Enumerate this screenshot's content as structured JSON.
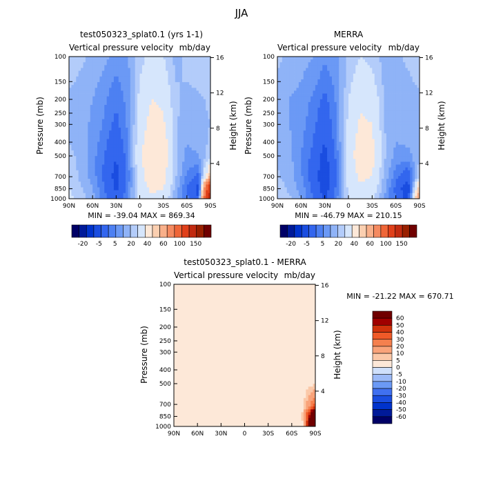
{
  "figure_title": "JJA",
  "colors": {
    "ramp_abs": [
      "#000066",
      "#001a99",
      "#0033cc",
      "#1a4de0",
      "#3366ee",
      "#4d80f2",
      "#6b99f5",
      "#8fb3f7",
      "#b3ccfa",
      "#d6e6fc",
      "#fde8d8",
      "#fbcfb0",
      "#f9b08a",
      "#f58a60",
      "#ef6638",
      "#e0401a",
      "#c22b10",
      "#992000",
      "#700000"
    ],
    "ramp_diff": [
      "#000066",
      "#001a99",
      "#0033cc",
      "#1a4de0",
      "#4070f0",
      "#6b99f5",
      "#9cbaf7",
      "#cfe0fb",
      "#fde8d8",
      "#fbc8a8",
      "#f9a37a",
      "#f5804e",
      "#ef5a28",
      "#d0320c",
      "#a00000",
      "#700000"
    ]
  },
  "chart_data": [
    {
      "id": "model",
      "type": "heatmap",
      "title": "test050323_splat0.1 (yrs 1-1)",
      "subtitle_left": "Vertical pressure velocity",
      "subtitle_right": "mb/day",
      "ylabel": "Pressure (mb)",
      "ylabel_right": "Height (km)",
      "y_scale": "log",
      "ylim": [
        1000,
        100
      ],
      "x_ticks": [
        "90N",
        "60N",
        "30N",
        "0",
        "30S",
        "60S",
        "90S"
      ],
      "y_ticks": [
        100,
        150,
        200,
        250,
        300,
        400,
        500,
        700,
        850,
        1000
      ],
      "height_ticks": [
        16,
        12,
        8,
        4
      ],
      "stats": "MIN = -39.04   MAX = 869.34",
      "colorbar_labels": [
        "-20",
        "-5",
        "5",
        "20",
        "40",
        "60",
        "100",
        "150"
      ],
      "x_lat": [
        -90,
        -75,
        -60,
        -45,
        -30,
        -15,
        0,
        15,
        30,
        45,
        60,
        75,
        90
      ],
      "p_levels": [
        100,
        150,
        200,
        300,
        400,
        500,
        700,
        850,
        1000
      ],
      "values": [
        [
          8,
          6,
          4,
          2,
          -3,
          0,
          8,
          12,
          10,
          4,
          6,
          8,
          10
        ],
        [
          6,
          4,
          2,
          -2,
          -6,
          -2,
          10,
          16,
          14,
          5,
          5,
          6,
          8
        ],
        [
          4,
          2,
          0,
          -4,
          -9,
          -3,
          12,
          20,
          18,
          6,
          4,
          4,
          6
        ],
        [
          4,
          2,
          -1,
          -6,
          -12,
          -4,
          14,
          24,
          22,
          6,
          2,
          3,
          5
        ],
        [
          5,
          3,
          -2,
          -8,
          -16,
          -5,
          16,
          28,
          26,
          7,
          0,
          2,
          6
        ],
        [
          6,
          4,
          -3,
          -10,
          -20,
          -6,
          18,
          30,
          28,
          8,
          -2,
          0,
          8
        ],
        [
          8,
          4,
          -2,
          -12,
          -24,
          -8,
          16,
          26,
          24,
          6,
          -6,
          -12,
          40
        ],
        [
          10,
          6,
          0,
          -10,
          -22,
          -6,
          14,
          22,
          20,
          4,
          -10,
          -24,
          150
        ],
        [
          12,
          8,
          2,
          -8,
          -18,
          -4,
          12,
          18,
          16,
          2,
          -8,
          -20,
          200
        ]
      ]
    },
    {
      "id": "merra",
      "type": "heatmap",
      "title": "MERRA",
      "subtitle_left": "Vertical pressure velocity",
      "subtitle_right": "mb/day",
      "ylabel": "Pressure (mb)",
      "ylabel_right": "Height (km)",
      "y_scale": "log",
      "ylim": [
        1000,
        100
      ],
      "x_ticks": [
        "90N",
        "60N",
        "30N",
        "0",
        "30S",
        "60S",
        "90S"
      ],
      "y_ticks": [
        100,
        150,
        200,
        250,
        300,
        400,
        500,
        700,
        850,
        1000
      ],
      "height_ticks": [
        16,
        12,
        8,
        4
      ],
      "stats": "MIN = -46.79   MAX = 210.15",
      "colorbar_labels": [
        "-20",
        "-5",
        "5",
        "20",
        "40",
        "60",
        "100",
        "150"
      ],
      "x_lat": [
        -90,
        -75,
        -60,
        -45,
        -30,
        -15,
        0,
        15,
        30,
        45,
        60,
        75,
        90
      ],
      "p_levels": [
        100,
        150,
        200,
        300,
        400,
        500,
        700,
        850,
        1000
      ],
      "values": [
        [
          6,
          4,
          2,
          0,
          -4,
          -1,
          6,
          10,
          8,
          3,
          4,
          6,
          8
        ],
        [
          4,
          2,
          0,
          -3,
          -8,
          -3,
          8,
          14,
          12,
          4,
          3,
          4,
          6
        ],
        [
          2,
          0,
          -2,
          -6,
          -12,
          -4,
          10,
          18,
          16,
          5,
          2,
          3,
          4
        ],
        [
          2,
          0,
          -3,
          -8,
          -16,
          -5,
          12,
          22,
          20,
          5,
          1,
          2,
          4
        ],
        [
          3,
          1,
          -4,
          -10,
          -20,
          -6,
          14,
          24,
          22,
          6,
          0,
          1,
          4
        ],
        [
          4,
          2,
          -5,
          -12,
          -24,
          -8,
          15,
          26,
          24,
          6,
          -2,
          -2,
          4
        ],
        [
          6,
          2,
          -4,
          -14,
          -28,
          -10,
          14,
          22,
          20,
          4,
          -8,
          -16,
          10
        ],
        [
          8,
          4,
          -2,
          -12,
          -26,
          -8,
          12,
          18,
          16,
          2,
          -12,
          -30,
          40
        ],
        [
          10,
          6,
          0,
          -10,
          -22,
          -6,
          10,
          14,
          12,
          0,
          -10,
          -24,
          60
        ]
      ]
    },
    {
      "id": "difference",
      "type": "heatmap",
      "title": "test050323_splat0.1 - MERRA",
      "subtitle_left": "Vertical pressure velocity",
      "subtitle_right": "mb/day",
      "ylabel": "Pressure (mb)",
      "ylabel_right": "Height (km)",
      "y_scale": "log",
      "ylim": [
        1000,
        100
      ],
      "x_ticks": [
        "90N",
        "60N",
        "30N",
        "0",
        "30S",
        "60S",
        "90S"
      ],
      "y_ticks": [
        100,
        150,
        200,
        250,
        300,
        400,
        500,
        700,
        850,
        1000
      ],
      "height_ticks": [
        16,
        12,
        8,
        4
      ],
      "stats": "MIN = -21.22   MAX = 670.71",
      "colorbar_labels": [
        "60",
        "50",
        "40",
        "30",
        "20",
        "10",
        "5",
        "0",
        "-5",
        "-10",
        "-20",
        "-30",
        "-40",
        "-50",
        "-60"
      ],
      "x_lat": [
        -90,
        -75,
        -60,
        -45,
        -30,
        -15,
        0,
        15,
        30,
        45,
        60,
        75,
        90
      ],
      "p_levels": [
        100,
        150,
        200,
        300,
        400,
        500,
        700,
        850,
        1000
      ],
      "values": [
        [
          2,
          2,
          2,
          2,
          1,
          1,
          2,
          2,
          2,
          1,
          2,
          2,
          2
        ],
        [
          2,
          2,
          2,
          1,
          2,
          1,
          2,
          2,
          2,
          1,
          2,
          2,
          2
        ],
        [
          2,
          2,
          2,
          2,
          4,
          1,
          2,
          2,
          2,
          1,
          2,
          1,
          2
        ],
        [
          2,
          2,
          2,
          2,
          4,
          1,
          2,
          2,
          2,
          1,
          1,
          1,
          1
        ],
        [
          2,
          2,
          2,
          2,
          4,
          1,
          2,
          4,
          4,
          1,
          0,
          1,
          2
        ],
        [
          2,
          2,
          2,
          2,
          4,
          1,
          3,
          4,
          4,
          2,
          0,
          2,
          4
        ],
        [
          2,
          2,
          2,
          2,
          4,
          2,
          2,
          4,
          4,
          2,
          2,
          4,
          30
        ],
        [
          2,
          2,
          2,
          2,
          4,
          2,
          2,
          4,
          4,
          4,
          2,
          6,
          110
        ],
        [
          2,
          2,
          2,
          2,
          4,
          2,
          2,
          4,
          4,
          2,
          2,
          4,
          140
        ]
      ]
    }
  ]
}
